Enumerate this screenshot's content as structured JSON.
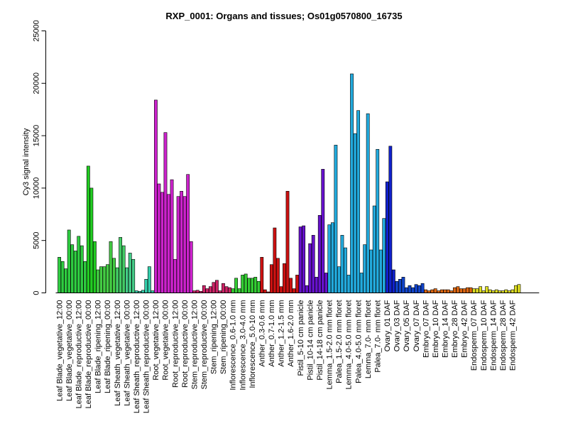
{
  "chart_data": {
    "type": "bar",
    "title": "RXP_0001: Organs and tissues; Os01g0570800_16735",
    "xlabel": "",
    "ylabel": "Cy3 signal intensity",
    "ylim": [
      0,
      25000
    ],
    "yticks": [
      0,
      5000,
      10000,
      15000,
      20000,
      25000
    ],
    "tick_labels": [
      "Leaf Blade_vegetative_12:00",
      "Leaf Blade_vegetative_00:00",
      "Leaf Blade_reproductive_12:00",
      "Leaf Blade_reproductive_00:00",
      "Leaf Blade_ripening_12:00",
      "Leaf Blade_ripening_00:00",
      "Leaf Sheath_vegetative_12:00",
      "Leaf Sheath_vegetative_00:00",
      "Leaf Sheath_reproductive_12:00",
      "Leaf Sheath_reproductive_00:00",
      "Root_vegetative_12:00",
      "Root_vegetative_00:00",
      "Root_reproductive_12:00",
      "Root_reproductive_00:00",
      "Stem_reproductive_12:00",
      "Stem_reproductive_00:00",
      "Stem_ripening_12:00",
      "Stem_ripening_00:00",
      "Inflorescence_0.6-1.0 mm",
      "Inflorescence_3.0-4.0 mm",
      "Inflorescence_5.0-10 mm",
      "Anther_0.3-0.6 mm",
      "Anther_0.7-1.0 mm",
      "Anther_1.2-1.5 mm",
      "Anther_1.6-2.0 mm",
      "Pistil_5-10 cm panicle",
      "Pistil_10-14 cm panicle",
      "Pistil_14-18 cm panicle",
      "Lemma_1.5-2.0 mm floret",
      "Palea_1.5-2.0 mm floret",
      "Lemma_4.0-5.0 mm floret",
      "Palea_4.0-5.0 mm floret",
      "Lemma_7.0- mm floret",
      "Palea_7.0- mm floret",
      "Ovary_01 DAF",
      "Ovary_03 DAF",
      "Ovary_05 DAF",
      "Ovary_07 DAF",
      "Embryo_07 DAF",
      "Embryo_10 DAF",
      "Embryo_14 DAF",
      "Embryo_28 DAF",
      "Embryo_42 DAF",
      "Endosperm_07 DAF",
      "Endosperm_10 DAF",
      "Endosperm_14 DAF",
      "Endosperm_28 DAF",
      "Endosperm_42 DAF"
    ],
    "groups": [
      {
        "color": "#2ecc40",
        "values": [
          3400,
          3000,
          2300
        ]
      },
      {
        "color": "#2ecc40",
        "values": [
          6000,
          4600,
          4000
        ]
      },
      {
        "color": "#2ecc40",
        "values": [
          5400,
          4500,
          3000
        ]
      },
      {
        "color": "#22cc22",
        "values": [
          12100,
          10000,
          4900
        ]
      },
      {
        "color": "#44cc44",
        "values": [
          2200,
          2500,
          2500
        ]
      },
      {
        "color": "#44cc44",
        "values": [
          2700,
          4900,
          3300
        ]
      },
      {
        "color": "#44cc66",
        "values": [
          2400,
          5300,
          4500
        ]
      },
      {
        "color": "#44cc88",
        "values": [
          2400,
          3800,
          3200
        ]
      },
      {
        "color": "#33ccaa",
        "values": [
          200,
          150,
          250
        ]
      },
      {
        "color": "#33ccaa",
        "values": [
          1300,
          2500,
          200
        ]
      },
      {
        "color": "#cc22cc",
        "values": [
          18400,
          10400,
          9600
        ]
      },
      {
        "color": "#cc22cc",
        "values": [
          15300,
          9400,
          10800
        ]
      },
      {
        "color": "#cc22cc",
        "values": [
          3200,
          9200,
          9700
        ]
      },
      {
        "color": "#cc22cc",
        "values": [
          9200,
          11300,
          4900
        ]
      },
      {
        "color": "#cc2266",
        "values": [
          200,
          250,
          150
        ]
      },
      {
        "color": "#cc2266",
        "values": [
          700,
          400,
          600
        ]
      },
      {
        "color": "#cc2266",
        "values": [
          1000,
          1200,
          200
        ]
      },
      {
        "color": "#cc2266",
        "values": [
          900,
          600,
          500
        ]
      },
      {
        "color": "#33cc33",
        "values": [
          400,
          1400,
          400
        ]
      },
      {
        "color": "#33cc33",
        "values": [
          1700,
          1800,
          1400
        ]
      },
      {
        "color": "#33cc33",
        "values": [
          1400,
          1500,
          1100
        ]
      },
      {
        "color": "#cc1111",
        "values": [
          3400,
          300,
          100
        ]
      },
      {
        "color": "#cc1111",
        "values": [
          2700,
          6200,
          3300
        ]
      },
      {
        "color": "#cc1111",
        "values": [
          600,
          2800,
          9700
        ]
      },
      {
        "color": "#cc1111",
        "values": [
          1400,
          400,
          1700
        ]
      },
      {
        "color": "#6611cc",
        "values": [
          6300,
          6400,
          700
        ]
      },
      {
        "color": "#6611cc",
        "values": [
          4700,
          5500,
          1500
        ]
      },
      {
        "color": "#6611cc",
        "values": [
          7400,
          11800,
          1900
        ]
      },
      {
        "color": "#22aadd",
        "values": [
          6500,
          6700,
          14100
        ]
      },
      {
        "color": "#22aadd",
        "values": [
          2500,
          5500,
          4300
        ]
      },
      {
        "color": "#22aadd",
        "values": [
          1700,
          20900,
          15200
        ]
      },
      {
        "color": "#22aadd",
        "values": [
          17400,
          1900,
          4600
        ]
      },
      {
        "color": "#22aadd",
        "values": [
          17100,
          4100,
          8300
        ]
      },
      {
        "color": "#22aadd",
        "values": [
          13700,
          4100,
          7100
        ]
      },
      {
        "color": "#1122cc",
        "values": [
          10600,
          14000,
          2200
        ]
      },
      {
        "color": "#1144cc",
        "values": [
          1100,
          1300,
          1500
        ]
      },
      {
        "color": "#1144cc",
        "values": [
          500,
          700,
          500
        ]
      },
      {
        "color": "#1144cc",
        "values": [
          800,
          700,
          900
        ]
      },
      {
        "color": "#dd6611",
        "values": [
          300,
          200,
          300
        ]
      },
      {
        "color": "#dd6611",
        "values": [
          400,
          200,
          300
        ]
      },
      {
        "color": "#dd6611",
        "values": [
          300,
          300,
          200
        ]
      },
      {
        "color": "#dd6611",
        "values": [
          500,
          600,
          400
        ]
      },
      {
        "color": "#dd6611",
        "values": [
          400,
          500,
          500
        ]
      },
      {
        "color": "#dddd22",
        "values": [
          400,
          400,
          600
        ]
      },
      {
        "color": "#dddd22",
        "values": [
          200,
          600,
          300
        ]
      },
      {
        "color": "#dddd22",
        "values": [
          200,
          300,
          200
        ]
      },
      {
        "color": "#dddd22",
        "values": [
          200,
          300,
          200
        ]
      },
      {
        "color": "#dddd22",
        "values": [
          300,
          700,
          800
        ]
      }
    ]
  }
}
